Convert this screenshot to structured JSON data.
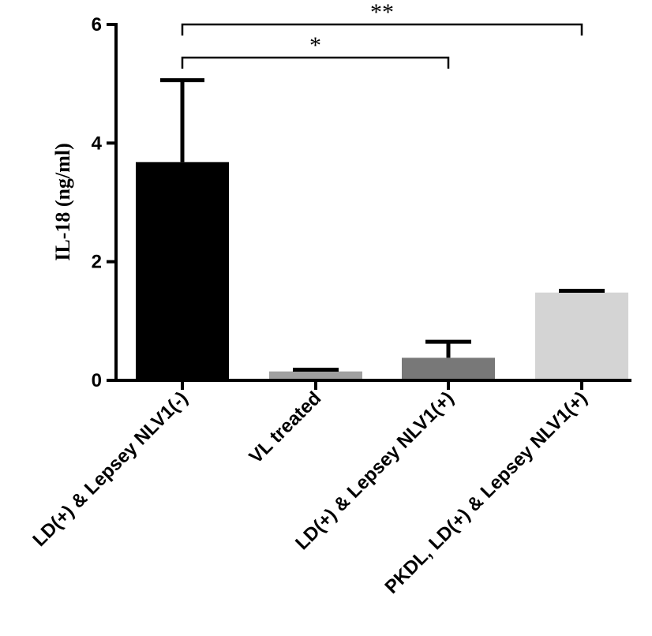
{
  "chart_data": {
    "type": "bar",
    "title": "",
    "xlabel": "",
    "ylabel": "IL-18 (ng/ml)",
    "ylim": [
      0,
      6
    ],
    "yticks": [
      "0",
      "2",
      "4",
      "6"
    ],
    "categories": [
      "LD(+) & Lepsey NLV1(-)",
      "VL treated",
      "LD(+) & Lepsey NLV1(+)",
      "PKDL, LD(+) & Lepsey NLV1(+)"
    ],
    "values": [
      3.68,
      0.15,
      0.38,
      1.48
    ],
    "errors": [
      1.38,
      0.03,
      0.27,
      0.03
    ],
    "colors": [
      "#000000",
      "#a0a0a0",
      "#787878",
      "#d4d4d4"
    ],
    "significance": [
      {
        "from": 0,
        "to": 2,
        "label": "*"
      },
      {
        "from": 0,
        "to": 3,
        "label": "**"
      }
    ]
  }
}
